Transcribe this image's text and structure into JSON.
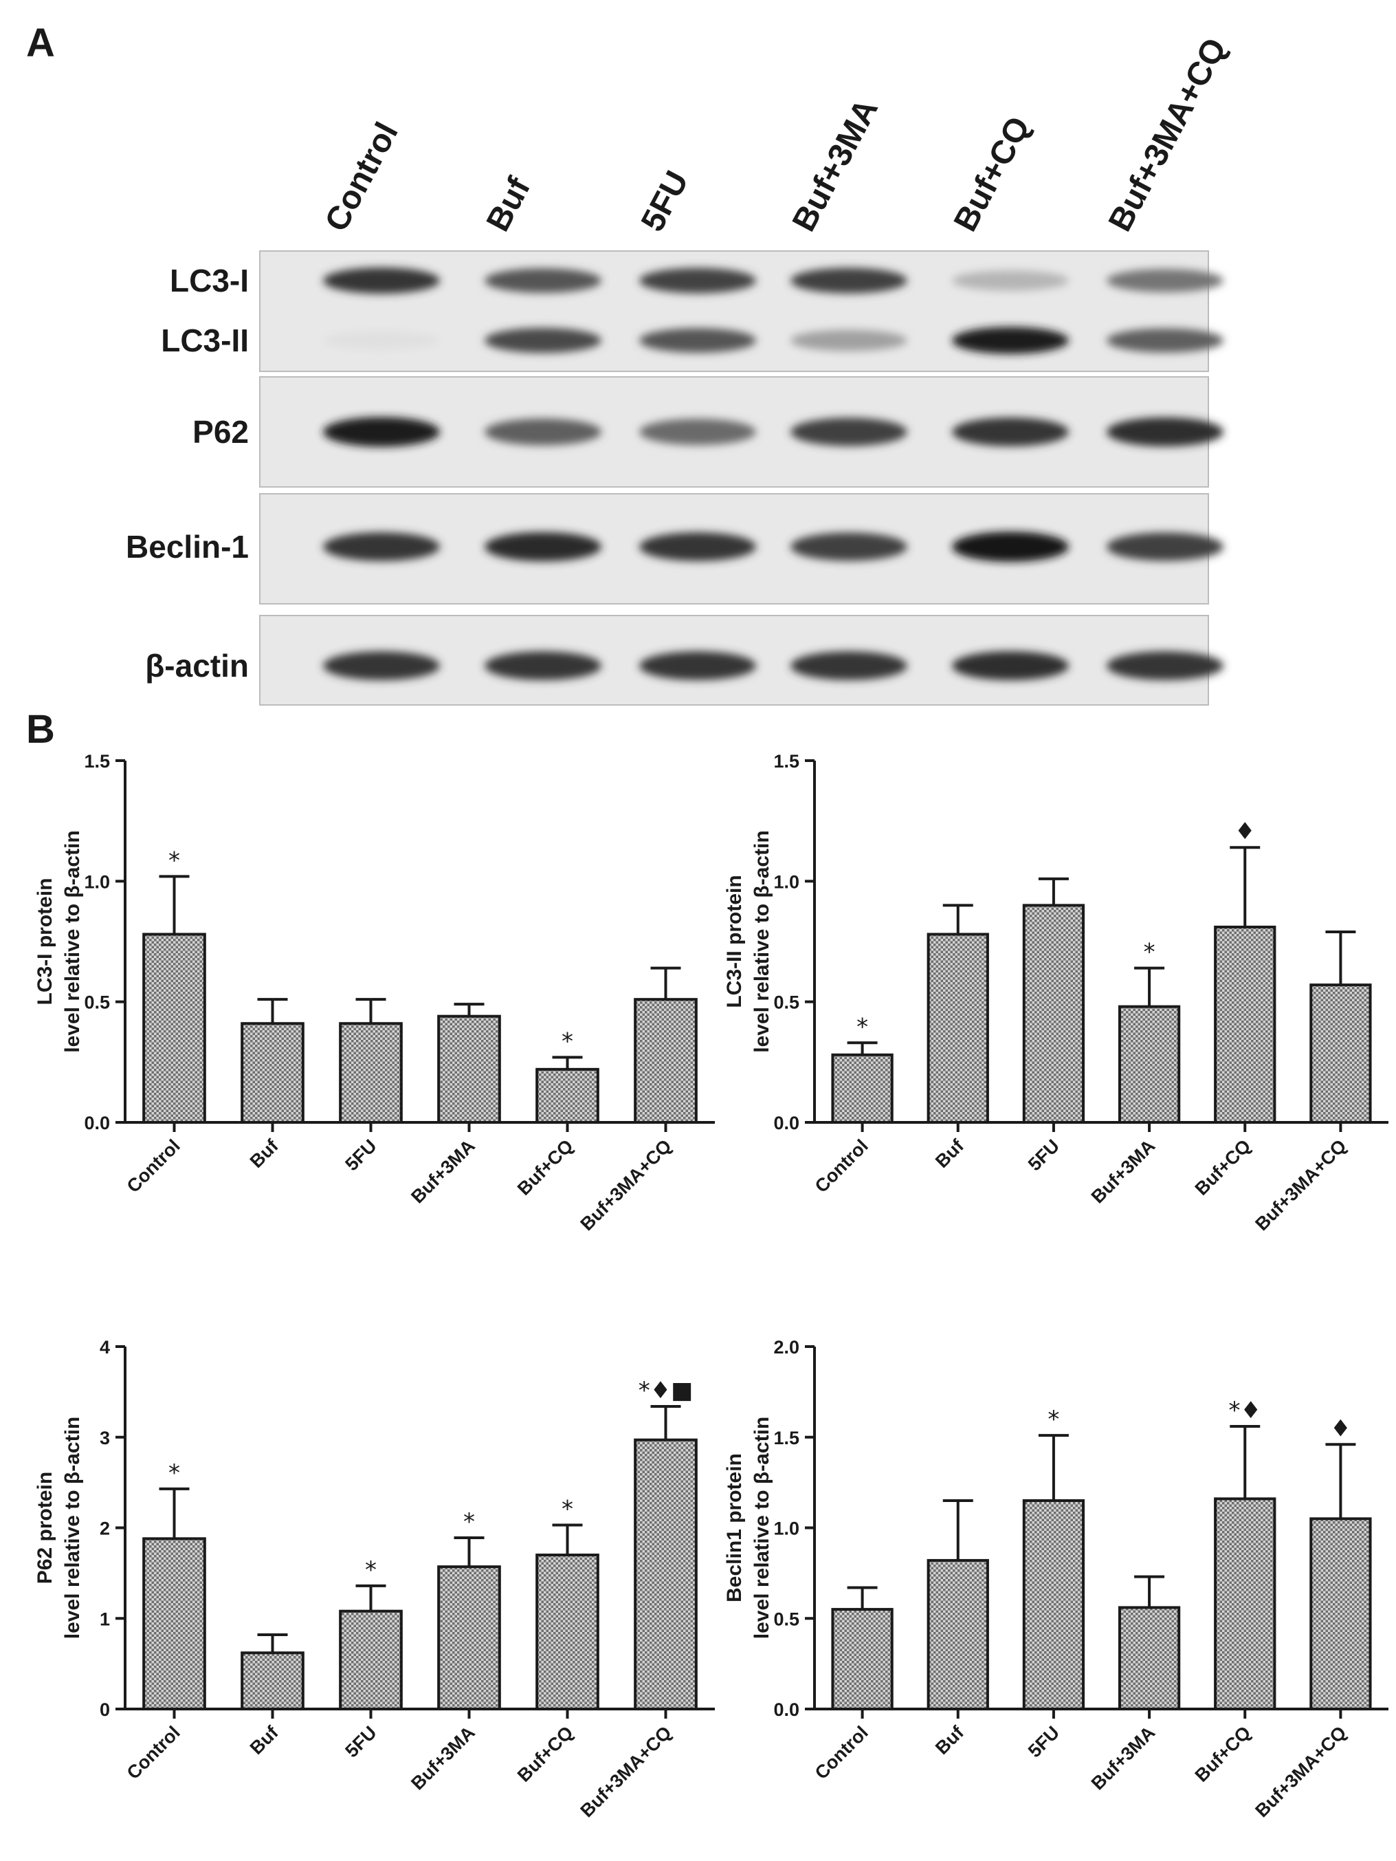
{
  "panel_labels": {
    "a": "A",
    "b": "B"
  },
  "blot": {
    "lanes": [
      "Control",
      "Buf",
      "5FU",
      "Buf+3MA",
      "Buf+CQ",
      "Buf+3MA+CQ"
    ],
    "rows": [
      "LC3-I",
      "LC3-II",
      "P62",
      "Beclin-1",
      "β-actin"
    ],
    "band_intensity": {
      "LC3-I": [
        0.85,
        0.7,
        0.78,
        0.8,
        0.25,
        0.55
      ],
      "LC3-II": [
        0.05,
        0.75,
        0.7,
        0.35,
        0.95,
        0.65
      ],
      "P62": [
        0.95,
        0.65,
        0.6,
        0.8,
        0.85,
        0.88
      ],
      "Beclin-1": [
        0.85,
        0.9,
        0.85,
        0.8,
        0.98,
        0.8
      ],
      "β-actin": [
        0.85,
        0.85,
        0.85,
        0.85,
        0.88,
        0.85
      ]
    }
  },
  "chart_data": [
    {
      "type": "bar",
      "categories": [
        "Control",
        "Buf",
        "5FU",
        "Buf+3MA",
        "Buf+CQ",
        "Buf+3MA+CQ"
      ],
      "values": [
        0.78,
        0.41,
        0.41,
        0.44,
        0.22,
        0.51
      ],
      "errors": [
        0.24,
        0.1,
        0.1,
        0.05,
        0.05,
        0.13
      ],
      "annotations": [
        "*",
        "",
        "",
        "",
        "*",
        ""
      ],
      "ylabel": "LC3-I protein level relative to β-actin",
      "ylabel_lines": [
        "LC3-I protein",
        "level relative to β-actin"
      ],
      "ylim": [
        0,
        1.5
      ],
      "yticks": [
        "0.0",
        "0.5",
        "1.0",
        "1.5"
      ],
      "ytick_values": [
        0,
        0.5,
        1.0,
        1.5
      ]
    },
    {
      "type": "bar",
      "categories": [
        "Control",
        "Buf",
        "5FU",
        "Buf+3MA",
        "Buf+CQ",
        "Buf+3MA+CQ"
      ],
      "values": [
        0.28,
        0.78,
        0.9,
        0.48,
        0.81,
        0.57
      ],
      "errors": [
        0.05,
        0.12,
        0.11,
        0.16,
        0.33,
        0.22
      ],
      "annotations": [
        "*",
        "",
        "",
        "*",
        "♦",
        ""
      ],
      "ylabel": "LC3-II protein level relative to β-actin",
      "ylabel_lines": [
        "LC3-II protein",
        "level relative to β-actin"
      ],
      "ylim": [
        0,
        1.5
      ],
      "yticks": [
        "0.0",
        "0.5",
        "1.0",
        "1.5"
      ],
      "ytick_values": [
        0,
        0.5,
        1.0,
        1.5
      ]
    },
    {
      "type": "bar",
      "categories": [
        "Control",
        "Buf",
        "5FU",
        "Buf+3MA",
        "Buf+CQ",
        "Buf+3MA+CQ"
      ],
      "values": [
        1.88,
        0.62,
        1.08,
        1.57,
        1.7,
        2.97
      ],
      "errors": [
        0.55,
        0.2,
        0.28,
        0.32,
        0.33,
        0.37
      ],
      "annotations": [
        "*",
        "",
        "*",
        "*",
        "*",
        "*♦■"
      ],
      "ylabel": "P62 protein level relative to β-actin",
      "ylabel_lines": [
        "P62 protein",
        "level relative to β-actin"
      ],
      "ylim": [
        0,
        4
      ],
      "yticks": [
        "0",
        "1",
        "2",
        "3",
        "4"
      ],
      "ytick_values": [
        0,
        1,
        2,
        3,
        4
      ]
    },
    {
      "type": "bar",
      "categories": [
        "Control",
        "Buf",
        "5FU",
        "Buf+3MA",
        "Buf+CQ",
        "Buf+3MA+CQ"
      ],
      "values": [
        0.55,
        0.82,
        1.15,
        0.56,
        1.16,
        1.05
      ],
      "errors": [
        0.12,
        0.33,
        0.36,
        0.17,
        0.4,
        0.41
      ],
      "annotations": [
        "",
        "",
        "*",
        "",
        "*♦",
        "♦"
      ],
      "ylabel": "Beclin1 protein level relative to β-actin",
      "ylabel_lines": [
        "Beclin1 protein",
        "level relative to β-actin"
      ],
      "ylim": [
        0,
        2.0
      ],
      "yticks": [
        "0.0",
        "0.5",
        "1.0",
        "1.5",
        "2.0"
      ],
      "ytick_values": [
        0,
        0.5,
        1.0,
        1.5,
        2.0
      ]
    }
  ]
}
